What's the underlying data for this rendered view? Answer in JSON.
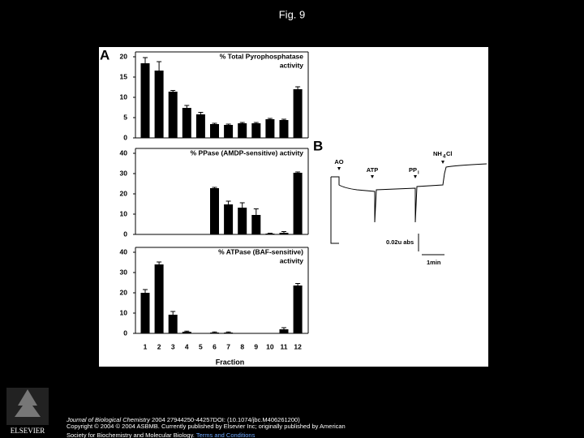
{
  "title": "Fig. 9",
  "panel_labels": [
    "A",
    "B"
  ],
  "chart_data": [
    {
      "type": "bar",
      "title": [
        "% Total Pyrophosphatase",
        "activity"
      ],
      "color": "#000000",
      "values": [
        18.4,
        16.6,
        11.4,
        7.4,
        5.8,
        3.4,
        3.2,
        3.6,
        3.6,
        4.6,
        4.4,
        12
      ],
      "errors": [
        1.4,
        2.2,
        0.3,
        0.6,
        0.5,
        0.2,
        0.2,
        0.2,
        0.2,
        0.2,
        0.2,
        0.6
      ],
      "ylim": [
        0,
        20
      ],
      "yticks": [
        0,
        5,
        10,
        15,
        20
      ]
    },
    {
      "type": "bar",
      "title": [
        "% PPase (AMDP-sensitive) activity"
      ],
      "color": "#000000",
      "values": [
        null,
        null,
        null,
        null,
        null,
        22.8,
        14.8,
        13.2,
        9.6,
        0.4,
        0.8,
        30.4
      ],
      "errors": [
        null,
        null,
        null,
        null,
        null,
        0.4,
        1.6,
        2.4,
        3.0,
        0.2,
        0.6,
        0.4
      ],
      "ylim": [
        0,
        40
      ],
      "yticks": [
        0,
        10,
        20,
        30,
        40
      ]
    },
    {
      "type": "bar",
      "title": [
        "% ATPase (BAF-sensitive)",
        "activity"
      ],
      "color": "#000000",
      "categories": [
        "1",
        "2",
        "3",
        "4",
        "5",
        "6",
        "7",
        "8",
        "9",
        "10",
        "11",
        "12"
      ],
      "values": [
        20,
        34,
        9.2,
        0.8,
        null,
        0.4,
        0.4,
        null,
        null,
        null,
        2,
        23.6
      ],
      "errors": [
        1.6,
        1.2,
        1.6,
        0.3,
        null,
        0.3,
        0.3,
        null,
        null,
        null,
        0.8,
        1.0
      ],
      "ylim": [
        0,
        40
      ],
      "yticks": [
        0,
        10,
        20,
        30,
        40
      ],
      "x_label": "Fraction"
    }
  ],
  "panel_b": {
    "markers": [
      "AO",
      "ATP",
      "PP",
      "NH"
    ],
    "pp_sub": "i",
    "nh_sub": "4",
    "nh_end": "Cl",
    "scale_abs": "0.02u abs",
    "scale_time": "1min"
  },
  "footer": {
    "logo": "ELSEVIER",
    "journal": "Journal of Biological Chemistry",
    "citation": " 2004 27944250-44257DOI: (10.1074/jbc.M406261200)",
    "copyright": "Copyright © 2004 © 2004 ASBMB. Currently published by Elsevier Inc; originally published by American",
    "society": "Society for Biochemistry and Molecular Biology.",
    "link": "Terms and Conditions"
  }
}
